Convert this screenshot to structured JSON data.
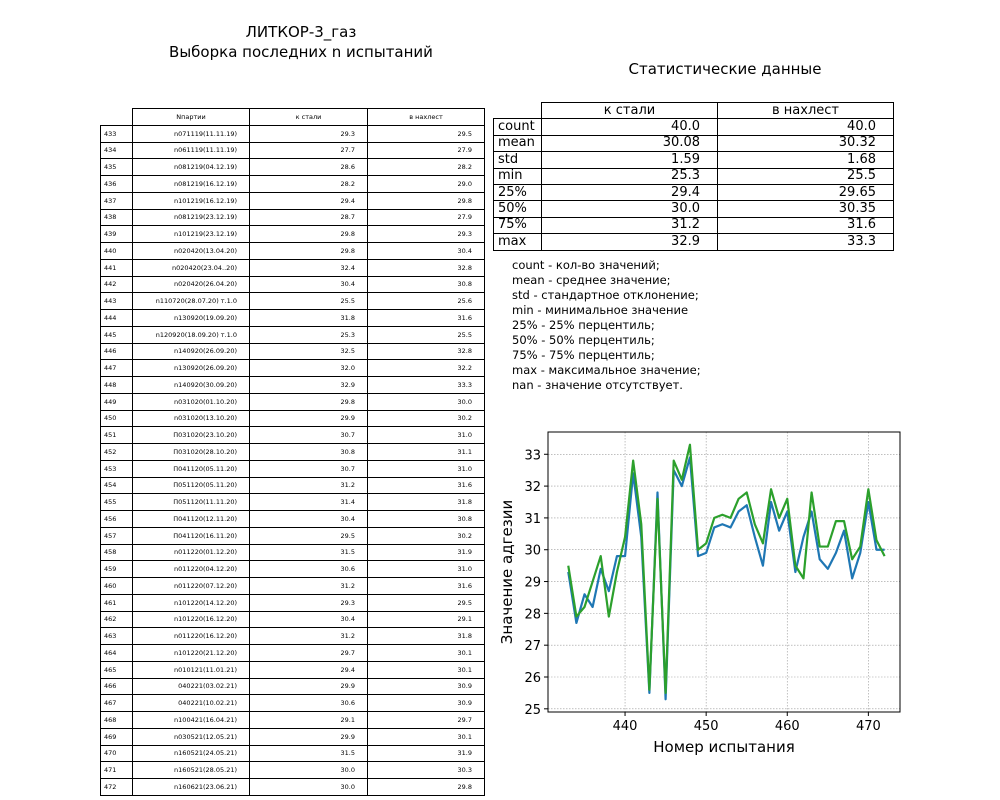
{
  "title_line1": "ЛИТКОР-3_газ",
  "title_line2": "Выборка последних n испытаний",
  "samples_table": {
    "headers": [
      "Nпартии",
      "к стали",
      "в нахлест"
    ],
    "rows": [
      [
        "433",
        "n071119(11.11.19)",
        "29.3",
        "29.5"
      ],
      [
        "434",
        "n061119(11.11.19)",
        "27.7",
        "27.9"
      ],
      [
        "435",
        "n081219(04.12.19)",
        "28.6",
        "28.2"
      ],
      [
        "436",
        "n081219(16.12.19)",
        "28.2",
        "29.0"
      ],
      [
        "437",
        "n101219(16.12.19)",
        "29.4",
        "29.8"
      ],
      [
        "438",
        "n081219(23.12.19)",
        "28.7",
        "27.9"
      ],
      [
        "439",
        "n101219(23.12.19)",
        "29.8",
        "29.3"
      ],
      [
        "440",
        "n020420(13.04.20)",
        "29.8",
        "30.4"
      ],
      [
        "441",
        "n020420(23.04..20)",
        "32.4",
        "32.8"
      ],
      [
        "442",
        "n020420(26.04.20)",
        "30.4",
        "30.8"
      ],
      [
        "443",
        "n110720(28.07.20) т.1.0",
        "25.5",
        "25.6"
      ],
      [
        "444",
        "n130920(19.09.20)",
        "31.8",
        "31.6"
      ],
      [
        "445",
        "n120920(18.09.20) т.1.0",
        "25.3",
        "25.5"
      ],
      [
        "446",
        "n140920(26.09.20)",
        "32.5",
        "32.8"
      ],
      [
        "447",
        "n130920(26.09.20)",
        "32.0",
        "32.2"
      ],
      [
        "448",
        "n140920(30.09.20)",
        "32.9",
        "33.3"
      ],
      [
        "449",
        "n031020(01.10.20)",
        "29.8",
        "30.0"
      ],
      [
        "450",
        "n031020(13.10.20)",
        "29.9",
        "30.2"
      ],
      [
        "451",
        "П031020(23.10.20)",
        "30.7",
        "31.0"
      ],
      [
        "452",
        "П031020(28.10.20)",
        "30.8",
        "31.1"
      ],
      [
        "453",
        "П041120(05.11.20)",
        "30.7",
        "31.0"
      ],
      [
        "454",
        "П051120(05.11.20)",
        "31.2",
        "31.6"
      ],
      [
        "455",
        "П051120(11.11.20)",
        "31.4",
        "31.8"
      ],
      [
        "456",
        "П041120(12.11.20)",
        "30.4",
        "30.8"
      ],
      [
        "457",
        "П041120(16.11.20)",
        "29.5",
        "30.2"
      ],
      [
        "458",
        "n011220(01.12.20)",
        "31.5",
        "31.9"
      ],
      [
        "459",
        "n011220(04.12.20)",
        "30.6",
        "31.0"
      ],
      [
        "460",
        "n011220(07.12.20)",
        "31.2",
        "31.6"
      ],
      [
        "461",
        "n101220(14.12.20)",
        "29.3",
        "29.5"
      ],
      [
        "462",
        "n101220(16.12.20)",
        "30.4",
        "29.1"
      ],
      [
        "463",
        "n011220(16.12.20)",
        "31.2",
        "31.8"
      ],
      [
        "464",
        "n101220(21.12.20)",
        "29.7",
        "30.1"
      ],
      [
        "465",
        "n010121(11.01.21)",
        "29.4",
        "30.1"
      ],
      [
        "466",
        "040221(03.02.21)",
        "29.9",
        "30.9"
      ],
      [
        "467",
        "040221(10.02.21)",
        "30.6",
        "30.9"
      ],
      [
        "468",
        "n100421(16.04.21)",
        "29.1",
        "29.7"
      ],
      [
        "469",
        "n030521(12.05.21)",
        "29.9",
        "30.1"
      ],
      [
        "470",
        "n160521(24.05.21)",
        "31.5",
        "31.9"
      ],
      [
        "471",
        "n160521(28.05.21)",
        "30.0",
        "30.3"
      ],
      [
        "472",
        "n160621(23.06.21)",
        "30.0",
        "29.8"
      ]
    ]
  },
  "stats_title": "Статистические данные",
  "stats_table": {
    "headers": [
      "к стали",
      "в нахлест"
    ],
    "rows": [
      [
        "count",
        "40.0",
        "40.0"
      ],
      [
        "mean",
        "30.08",
        "30.32"
      ],
      [
        "std",
        "1.59",
        "1.68"
      ],
      [
        "min",
        "25.3",
        "25.5"
      ],
      [
        "25%",
        "29.4",
        "29.65"
      ],
      [
        "50%",
        "30.0",
        "30.35"
      ],
      [
        "75%",
        "31.2",
        "31.6"
      ],
      [
        "max",
        "32.9",
        "33.3"
      ]
    ]
  },
  "legend_lines": [
    "count - кол-во значений;",
    "mean - среднее значение;",
    "std - стандартное отклонение;",
    "min - минимальное значение",
    "25% - 25% перцентиль;",
    "50% - 50% перцентиль;",
    "75% - 75% перцентиль;",
    "max - максимальное значение;",
    "nan - значение отсутствует."
  ],
  "chart_data": {
    "type": "line",
    "xlabel": "Номер испытания",
    "ylabel": "Значение адгезии",
    "xlim": [
      430.5,
      473.9
    ],
    "ylim": [
      24.9,
      33.7
    ],
    "xticks": [
      440,
      450,
      460,
      470
    ],
    "yticks": [
      25,
      26,
      27,
      28,
      29,
      30,
      31,
      32,
      33
    ],
    "grid": true,
    "x": [
      433,
      434,
      435,
      436,
      437,
      438,
      439,
      440,
      441,
      442,
      443,
      444,
      445,
      446,
      447,
      448,
      449,
      450,
      451,
      452,
      453,
      454,
      455,
      456,
      457,
      458,
      459,
      460,
      461,
      462,
      463,
      464,
      465,
      466,
      467,
      468,
      469,
      470,
      471,
      472
    ],
    "series": [
      {
        "color": "#1f77b4",
        "values": [
          29.3,
          27.7,
          28.6,
          28.2,
          29.4,
          28.7,
          29.8,
          29.8,
          32.4,
          30.4,
          25.5,
          31.8,
          25.3,
          32.5,
          32.0,
          32.9,
          29.8,
          29.9,
          30.7,
          30.8,
          30.7,
          31.2,
          31.4,
          30.4,
          29.5,
          31.5,
          30.6,
          31.2,
          29.3,
          30.4,
          31.2,
          29.7,
          29.4,
          29.9,
          30.6,
          29.1,
          29.9,
          31.5,
          30.0,
          30.0
        ]
      },
      {
        "color": "#2ca02c",
        "values": [
          29.5,
          27.9,
          28.2,
          29.0,
          29.8,
          27.9,
          29.3,
          30.4,
          32.8,
          30.8,
          25.6,
          31.6,
          25.5,
          32.8,
          32.2,
          33.3,
          30.0,
          30.2,
          31.0,
          31.1,
          31.0,
          31.6,
          31.8,
          30.8,
          30.2,
          31.9,
          31.0,
          31.6,
          29.5,
          29.1,
          31.8,
          30.1,
          30.1,
          30.9,
          30.9,
          29.7,
          30.1,
          31.9,
          30.3,
          29.8
        ]
      }
    ]
  }
}
